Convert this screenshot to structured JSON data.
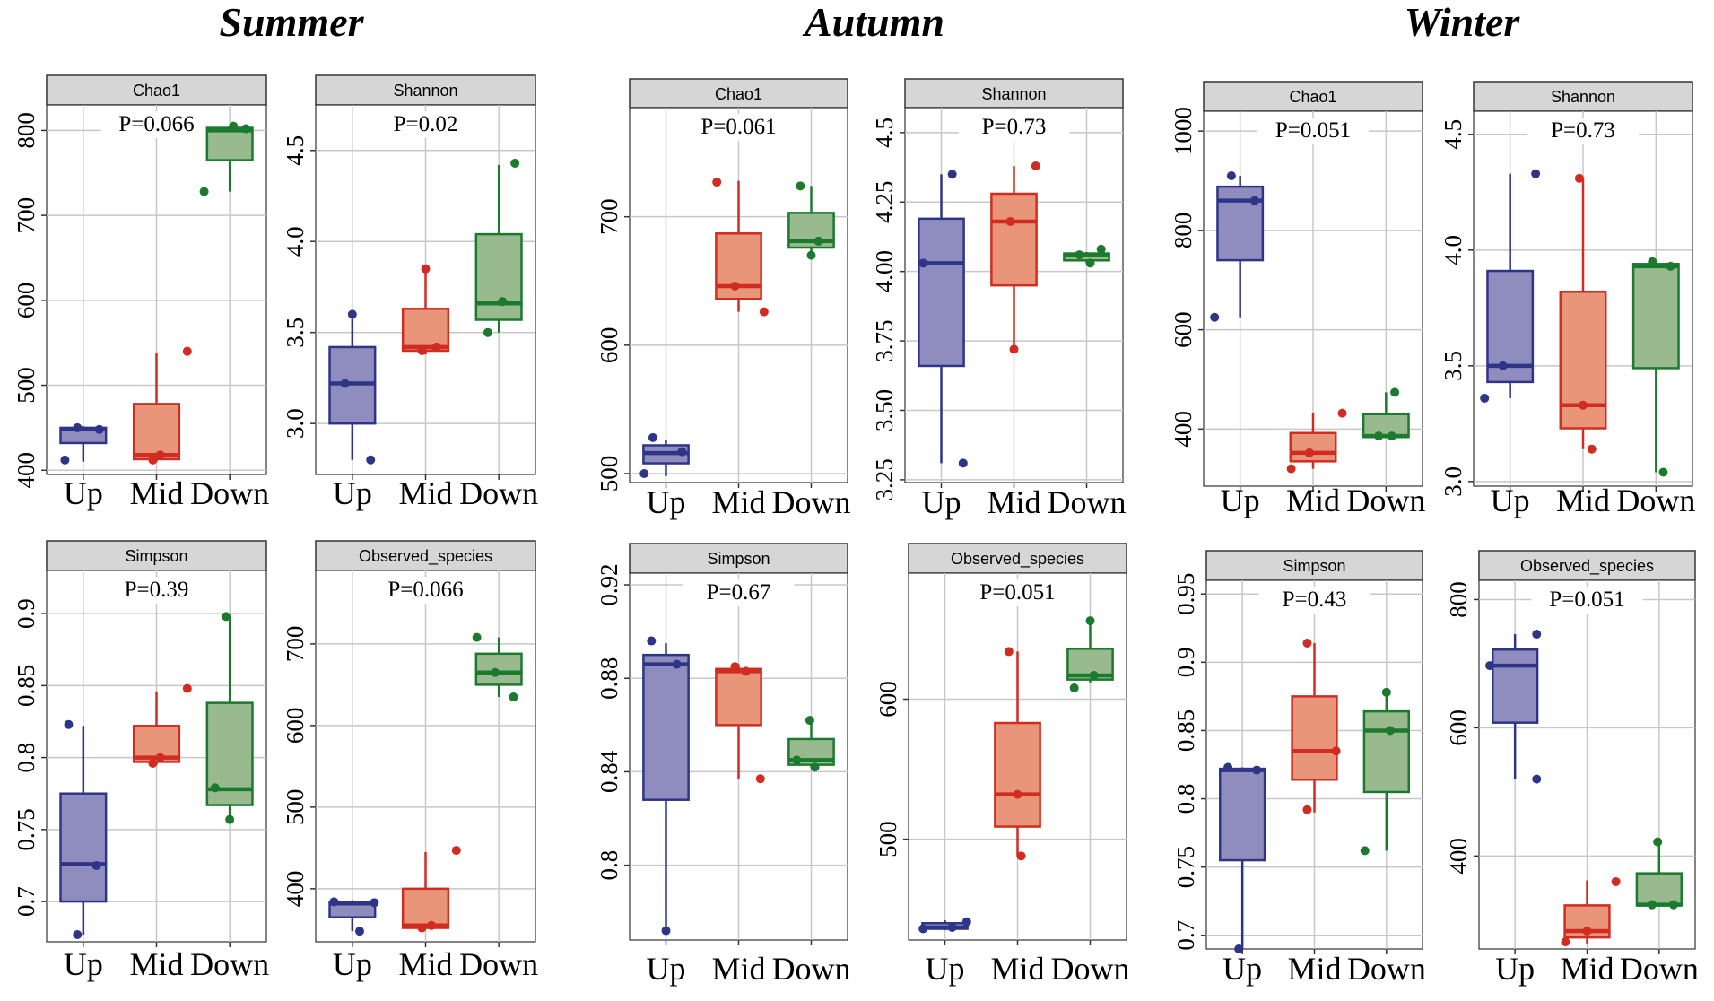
{
  "figure": {
    "seasons": [
      "Summer",
      "Autumn",
      "Winter"
    ],
    "groups": [
      "Up",
      "Mid",
      "Down"
    ],
    "colors": {
      "Up": {
        "fill": "#8f8dbd",
        "line": "#2e3588",
        "point": "#2e3588"
      },
      "Mid": {
        "fill": "#e8957a",
        "line": "#d12c22",
        "point": "#d12c22"
      },
      "Down": {
        "fill": "#98ba8e",
        "line": "#1b7a2e",
        "point": "#1b7a2e"
      }
    }
  },
  "chart_data": [
    {
      "type": "box",
      "season": "Summer",
      "metric": "Chao1",
      "pvalue": "P=0.066",
      "ylim": [
        395,
        830
      ],
      "yticks": [
        400,
        500,
        600,
        700,
        800
      ],
      "ytick_labels": [
        "400",
        "500",
        "600",
        "700",
        "800"
      ],
      "categories": [
        "Up",
        "Mid",
        "Down"
      ],
      "boxes": [
        {
          "min": 410,
          "q1": 432,
          "median": 448,
          "q3": 450,
          "max": 452
        },
        {
          "min": 410,
          "q1": 413,
          "median": 418,
          "q3": 478,
          "max": 538
        },
        {
          "min": 728,
          "q1": 765,
          "median": 800,
          "q3": 803,
          "max": 805
        }
      ],
      "points": [
        [
          {
            "y": 412,
            "jx": -0.25
          },
          {
            "y": 450,
            "jx": -0.08
          },
          {
            "y": 448,
            "jx": 0.22
          }
        ],
        [
          {
            "y": 412,
            "jx": -0.05
          },
          {
            "y": 418,
            "jx": 0.05
          },
          {
            "y": 540,
            "jx": 0.42
          }
        ],
        [
          {
            "y": 728,
            "jx": -0.35
          },
          {
            "y": 805,
            "jx": 0.05
          },
          {
            "y": 802,
            "jx": 0.22
          }
        ]
      ]
    },
    {
      "type": "box",
      "season": "Summer",
      "metric": "Shannon",
      "pvalue": "P=0.02",
      "ylim": [
        2.72,
        4.75
      ],
      "yticks": [
        3.0,
        3.5,
        4.0,
        4.5
      ],
      "ytick_labels": [
        "3.0",
        "3.5",
        "4.0",
        "4.5"
      ],
      "categories": [
        "Up",
        "Mid",
        "Down"
      ],
      "boxes": [
        {
          "min": 2.8,
          "q1": 3.0,
          "median": 3.22,
          "q3": 3.42,
          "max": 3.6
        },
        {
          "min": 3.38,
          "q1": 3.4,
          "median": 3.42,
          "q3": 3.63,
          "max": 3.84
        },
        {
          "min": 3.5,
          "q1": 3.57,
          "median": 3.66,
          "q3": 4.04,
          "max": 4.42
        }
      ],
      "points": [
        [
          {
            "y": 3.6,
            "jx": 0.0
          },
          {
            "y": 3.22,
            "jx": -0.1
          },
          {
            "y": 2.8,
            "jx": 0.25
          }
        ],
        [
          {
            "y": 3.85,
            "jx": 0.0
          },
          {
            "y": 3.4,
            "jx": -0.05
          },
          {
            "y": 3.42,
            "jx": 0.15
          }
        ],
        [
          {
            "y": 4.43,
            "jx": 0.22
          },
          {
            "y": 3.67,
            "jx": 0.05
          },
          {
            "y": 3.5,
            "jx": -0.15
          }
        ]
      ]
    },
    {
      "type": "box",
      "season": "Summer",
      "metric": "Simpson",
      "pvalue": "P=0.39",
      "ylim": [
        0.672,
        0.93
      ],
      "yticks": [
        0.7,
        0.75,
        0.8,
        0.85,
        0.9
      ],
      "ytick_labels": [
        "0.7",
        "0.75",
        "0.8",
        "0.85",
        "0.9"
      ],
      "categories": [
        "Up",
        "Mid",
        "Down"
      ],
      "boxes": [
        {
          "min": 0.677,
          "q1": 0.7,
          "median": 0.726,
          "q3": 0.775,
          "max": 0.822
        },
        {
          "min": 0.795,
          "q1": 0.797,
          "median": 0.8,
          "q3": 0.822,
          "max": 0.846
        },
        {
          "min": 0.757,
          "q1": 0.767,
          "median": 0.778,
          "q3": 0.838,
          "max": 0.898
        }
      ],
      "points": [
        [
          {
            "y": 0.823,
            "jx": -0.2
          },
          {
            "y": 0.725,
            "jx": 0.18
          },
          {
            "y": 0.677,
            "jx": -0.08
          }
        ],
        [
          {
            "y": 0.796,
            "jx": -0.05
          },
          {
            "y": 0.848,
            "jx": 0.42
          },
          {
            "y": 0.8,
            "jx": 0.05
          }
        ],
        [
          {
            "y": 0.898,
            "jx": -0.05
          },
          {
            "y": 0.779,
            "jx": -0.2
          },
          {
            "y": 0.757,
            "jx": 0.0
          }
        ]
      ]
    },
    {
      "type": "box",
      "season": "Summer",
      "metric": "Observed_species",
      "pvalue": "P=0.066",
      "ylim": [
        335,
        790
      ],
      "yticks": [
        400,
        500,
        600,
        700
      ],
      "ytick_labels": [
        "400",
        "500",
        "600",
        "700"
      ],
      "categories": [
        "Up",
        "Mid",
        "Down"
      ],
      "boxes": [
        {
          "min": 348,
          "q1": 365,
          "median": 382,
          "q3": 384,
          "max": 386
        },
        {
          "min": 352,
          "q1": 352,
          "median": 355,
          "q3": 400,
          "max": 445
        },
        {
          "min": 635,
          "q1": 650,
          "median": 665,
          "q3": 688,
          "max": 708
        }
      ],
      "points": [
        [
          {
            "y": 384,
            "jx": -0.25
          },
          {
            "y": 383,
            "jx": 0.3
          },
          {
            "y": 348,
            "jx": 0.1
          }
        ],
        [
          {
            "y": 352,
            "jx": -0.05
          },
          {
            "y": 355,
            "jx": 0.08
          },
          {
            "y": 447,
            "jx": 0.42
          }
        ],
        [
          {
            "y": 708,
            "jx": -0.3
          },
          {
            "y": 665,
            "jx": -0.05
          },
          {
            "y": 635,
            "jx": 0.2
          }
        ]
      ]
    },
    {
      "type": "box",
      "season": "Autumn",
      "metric": "Chao1",
      "pvalue": "P=0.061",
      "ylim": [
        493,
        785
      ],
      "yticks": [
        500,
        600,
        700
      ],
      "ytick_labels": [
        "500",
        "600",
        "700"
      ],
      "categories": [
        "Up",
        "Mid",
        "Down"
      ],
      "boxes": [
        {
          "min": 498,
          "q1": 508,
          "median": 516,
          "q3": 522,
          "max": 526
        },
        {
          "min": 626,
          "q1": 636,
          "median": 646,
          "q3": 687,
          "max": 728
        },
        {
          "min": 670,
          "q1": 676,
          "median": 681,
          "q3": 703,
          "max": 724
        }
      ],
      "points": [
        [
          {
            "y": 500,
            "jx": -0.3
          },
          {
            "y": 528,
            "jx": -0.18
          },
          {
            "y": 517,
            "jx": 0.22
          }
        ],
        [
          {
            "y": 727,
            "jx": -0.3
          },
          {
            "y": 646,
            "jx": -0.05
          },
          {
            "y": 626,
            "jx": 0.35
          }
        ],
        [
          {
            "y": 724,
            "jx": -0.15
          },
          {
            "y": 681,
            "jx": 0.1
          },
          {
            "y": 670,
            "jx": 0.0
          }
        ]
      ]
    },
    {
      "type": "box",
      "season": "Autumn",
      "metric": "Shannon",
      "pvalue": "P=0.73",
      "ylim": [
        3.24,
        4.59
      ],
      "yticks": [
        3.25,
        3.5,
        3.75,
        4.0,
        4.25,
        4.5
      ],
      "ytick_labels": [
        "3.25",
        "3.50",
        "3.75",
        "4.00",
        "4.25",
        "4.5"
      ],
      "categories": [
        "Up",
        "Mid",
        "Down"
      ],
      "boxes": [
        {
          "min": 3.31,
          "q1": 3.66,
          "median": 4.03,
          "q3": 4.19,
          "max": 4.35
        },
        {
          "min": 3.71,
          "q1": 3.95,
          "median": 4.18,
          "q3": 4.28,
          "max": 4.38
        },
        {
          "min": 4.03,
          "q1": 4.04,
          "median": 4.06,
          "q3": 4.065,
          "max": 4.07
        }
      ],
      "points": [
        [
          {
            "y": 4.35,
            "jx": 0.15
          },
          {
            "y": 4.03,
            "jx": -0.25
          },
          {
            "y": 3.31,
            "jx": 0.3
          }
        ],
        [
          {
            "y": 4.38,
            "jx": 0.3
          },
          {
            "y": 4.18,
            "jx": -0.05
          },
          {
            "y": 3.72,
            "jx": 0.0
          }
        ],
        [
          {
            "y": 4.08,
            "jx": 0.2
          },
          {
            "y": 4.06,
            "jx": -0.1
          },
          {
            "y": 4.03,
            "jx": 0.05
          }
        ]
      ]
    },
    {
      "type": "box",
      "season": "Autumn",
      "metric": "Simpson",
      "pvalue": "P=0.67",
      "ylim": [
        0.768,
        0.925
      ],
      "yticks": [
        0.8,
        0.84,
        0.88,
        0.92
      ],
      "ytick_labels": [
        "0.8",
        "0.84",
        "0.88",
        "0.92"
      ],
      "categories": [
        "Up",
        "Mid",
        "Down"
      ],
      "boxes": [
        {
          "min": 0.772,
          "q1": 0.828,
          "median": 0.886,
          "q3": 0.89,
          "max": 0.895
        },
        {
          "min": 0.837,
          "q1": 0.86,
          "median": 0.883,
          "q3": 0.884,
          "max": 0.886
        },
        {
          "min": 0.842,
          "q1": 0.843,
          "median": 0.845,
          "q3": 0.854,
          "max": 0.862
        }
      ],
      "points": [
        [
          {
            "y": 0.896,
            "jx": -0.2
          },
          {
            "y": 0.886,
            "jx": 0.15
          },
          {
            "y": 0.772,
            "jx": 0.0
          }
        ],
        [
          {
            "y": 0.885,
            "jx": -0.05
          },
          {
            "y": 0.883,
            "jx": 0.1
          },
          {
            "y": 0.837,
            "jx": 0.3
          }
        ],
        [
          {
            "y": 0.862,
            "jx": -0.02
          },
          {
            "y": 0.845,
            "jx": -0.2
          },
          {
            "y": 0.842,
            "jx": 0.05
          }
        ]
      ]
    },
    {
      "type": "box",
      "season": "Autumn",
      "metric": "Observed_species",
      "pvalue": "P=0.051",
      "ylim": [
        428,
        690
      ],
      "yticks": [
        500,
        600
      ],
      "ytick_labels": [
        "500",
        "600"
      ],
      "categories": [
        "Up",
        "Mid",
        "Down"
      ],
      "boxes": [
        {
          "min": 435,
          "q1": 436,
          "median": 437,
          "q3": 440,
          "max": 442
        },
        {
          "min": 487,
          "q1": 509,
          "median": 532,
          "q3": 583,
          "max": 634
        },
        {
          "min": 612,
          "q1": 614,
          "median": 617,
          "q3": 636,
          "max": 656
        }
      ],
      "points": [
        [
          {
            "y": 436,
            "jx": -0.3
          },
          {
            "y": 441,
            "jx": 0.3
          },
          {
            "y": 437,
            "jx": 0.1
          }
        ],
        [
          {
            "y": 634,
            "jx": -0.12
          },
          {
            "y": 532,
            "jx": 0.0
          },
          {
            "y": 488,
            "jx": 0.05
          }
        ],
        [
          {
            "y": 656,
            "jx": 0.0
          },
          {
            "y": 617,
            "jx": 0.05
          },
          {
            "y": 608,
            "jx": -0.22
          }
        ]
      ]
    },
    {
      "type": "box",
      "season": "Winter",
      "metric": "Chao1",
      "pvalue": "P=0.051",
      "ylim": [
        285,
        1040
      ],
      "yticks": [
        400,
        600,
        800,
        1000
      ],
      "ytick_labels": [
        "400",
        "600",
        "800",
        "1000"
      ],
      "categories": [
        "Up",
        "Mid",
        "Down"
      ],
      "boxes": [
        {
          "min": 625,
          "q1": 740,
          "median": 860,
          "q3": 888,
          "max": 910
        },
        {
          "min": 320,
          "q1": 335,
          "median": 352,
          "q3": 392,
          "max": 432
        },
        {
          "min": 382,
          "q1": 384,
          "median": 386,
          "q3": 430,
          "max": 474
        }
      ],
      "points": [
        [
          {
            "y": 910,
            "jx": -0.12
          },
          {
            "y": 860,
            "jx": 0.2
          },
          {
            "y": 625,
            "jx": -0.35
          }
        ],
        [
          {
            "y": 432,
            "jx": 0.4
          },
          {
            "y": 352,
            "jx": -0.05
          },
          {
            "y": 320,
            "jx": -0.3
          }
        ],
        [
          {
            "y": 474,
            "jx": 0.12
          },
          {
            "y": 386,
            "jx": -0.1
          },
          {
            "y": 386,
            "jx": 0.08
          }
        ]
      ]
    },
    {
      "type": "box",
      "season": "Winter",
      "metric": "Shannon",
      "pvalue": "P=0.73",
      "ylim": [
        2.98,
        4.6
      ],
      "yticks": [
        3.0,
        3.5,
        4.0,
        4.5
      ],
      "ytick_labels": [
        "3.0",
        "3.5",
        "4.0",
        "4.5"
      ],
      "categories": [
        "Up",
        "Mid",
        "Down"
      ],
      "boxes": [
        {
          "min": 3.36,
          "q1": 3.43,
          "median": 3.5,
          "q3": 3.91,
          "max": 4.33
        },
        {
          "min": 3.14,
          "q1": 3.23,
          "median": 3.33,
          "q3": 3.82,
          "max": 4.31
        },
        {
          "min": 3.04,
          "q1": 3.49,
          "median": 3.93,
          "q3": 3.94,
          "max": 3.95
        }
      ],
      "points": [
        [
          {
            "y": 4.33,
            "jx": 0.35
          },
          {
            "y": 3.5,
            "jx": -0.1
          },
          {
            "y": 3.36,
            "jx": -0.35
          }
        ],
        [
          {
            "y": 4.31,
            "jx": -0.05
          },
          {
            "y": 3.33,
            "jx": 0.0
          },
          {
            "y": 3.14,
            "jx": 0.12
          }
        ],
        [
          {
            "y": 3.95,
            "jx": -0.05
          },
          {
            "y": 3.93,
            "jx": 0.2
          },
          {
            "y": 3.04,
            "jx": 0.1
          }
        ]
      ]
    },
    {
      "type": "box",
      "season": "Winter",
      "metric": "Simpson",
      "pvalue": "P=0.43",
      "ylim": [
        0.69,
        0.96
      ],
      "yticks": [
        0.7,
        0.75,
        0.8,
        0.85,
        0.9,
        0.95
      ],
      "ytick_labels": [
        "0.7",
        "0.75",
        "0.8",
        "0.85",
        "0.9",
        "0.95"
      ],
      "categories": [
        "Up",
        "Mid",
        "Down"
      ],
      "boxes": [
        {
          "min": 0.69,
          "q1": 0.755,
          "median": 0.821,
          "q3": 0.822,
          "max": 0.823
        },
        {
          "min": 0.79,
          "q1": 0.814,
          "median": 0.835,
          "q3": 0.875,
          "max": 0.914
        },
        {
          "min": 0.762,
          "q1": 0.805,
          "median": 0.85,
          "q3": 0.864,
          "max": 0.878
        }
      ],
      "points": [
        [
          {
            "y": 0.823,
            "jx": -0.2
          },
          {
            "y": 0.821,
            "jx": 0.2
          },
          {
            "y": 0.69,
            "jx": -0.05
          }
        ],
        [
          {
            "y": 0.914,
            "jx": -0.1
          },
          {
            "y": 0.835,
            "jx": 0.3
          },
          {
            "y": 0.792,
            "jx": -0.1
          }
        ],
        [
          {
            "y": 0.878,
            "jx": 0.0
          },
          {
            "y": 0.85,
            "jx": 0.05
          },
          {
            "y": 0.762,
            "jx": -0.3
          }
        ]
      ]
    },
    {
      "type": "box",
      "season": "Winter",
      "metric": "Observed_species",
      "pvalue": "P=0.051",
      "ylim": [
        255,
        830
      ],
      "yticks": [
        400,
        600,
        800
      ],
      "ytick_labels": [
        "400",
        "600",
        "800"
      ],
      "categories": [
        "Up",
        "Mid",
        "Down"
      ],
      "boxes": [
        {
          "min": 520,
          "q1": 608,
          "median": 697,
          "q3": 722,
          "max": 746
        },
        {
          "min": 262,
          "q1": 273,
          "median": 283,
          "q3": 323,
          "max": 362
        },
        {
          "min": 322,
          "q1": 323,
          "median": 324,
          "q3": 373,
          "max": 422
        }
      ],
      "points": [
        [
          {
            "y": 746,
            "jx": 0.3
          },
          {
            "y": 697,
            "jx": -0.35
          },
          {
            "y": 520,
            "jx": 0.3
          }
        ],
        [
          {
            "y": 360,
            "jx": 0.4
          },
          {
            "y": 283,
            "jx": 0.0
          },
          {
            "y": 266,
            "jx": -0.3
          }
        ],
        [
          {
            "y": 422,
            "jx": -0.02
          },
          {
            "y": 324,
            "jx": 0.2
          },
          {
            "y": 324,
            "jx": -0.1
          }
        ]
      ]
    }
  ]
}
